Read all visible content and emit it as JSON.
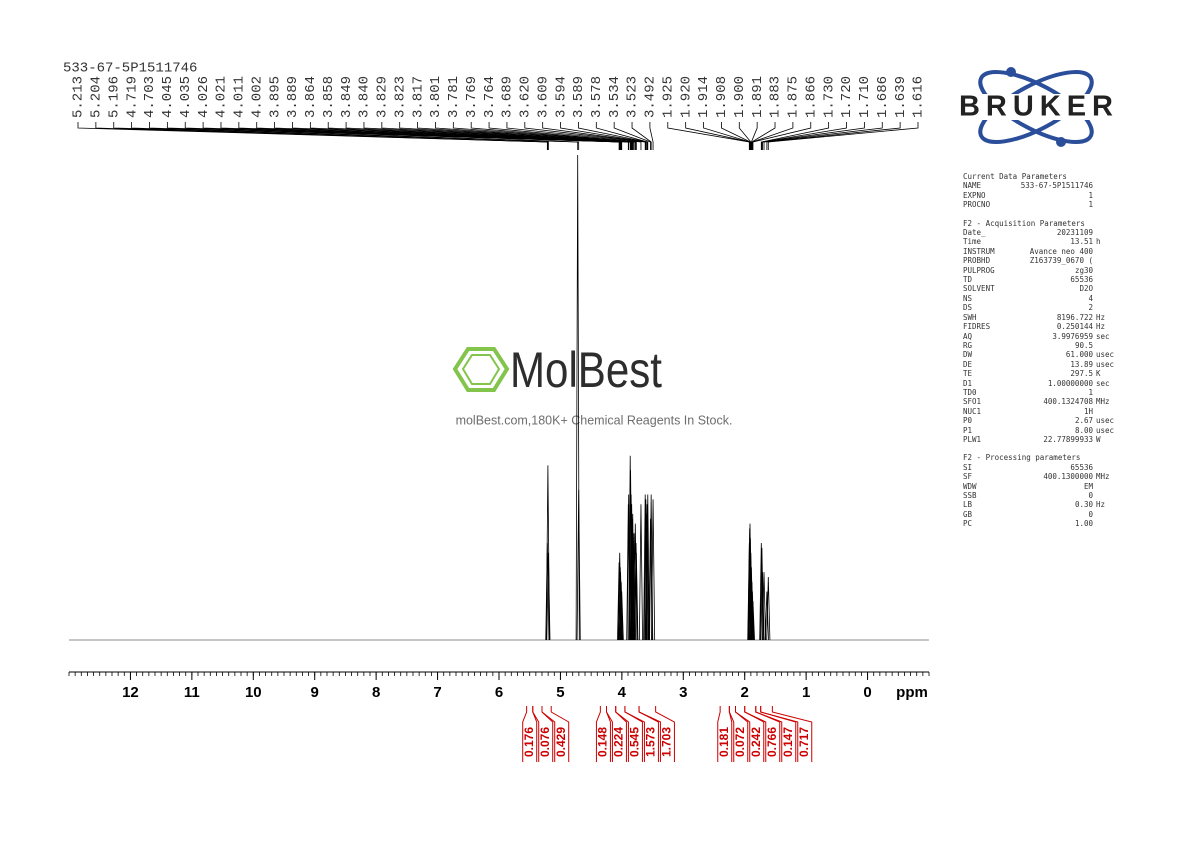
{
  "chart_data": {
    "type": "nmr",
    "title": "533-67-5P1511746",
    "xlabel": "ppm",
    "xlim": [
      13,
      -1
    ],
    "xticks": [
      12,
      11,
      10,
      9,
      8,
      7,
      6,
      5,
      4,
      3,
      2,
      1,
      0
    ],
    "ylim": [
      0,
      100
    ],
    "color": "#000000",
    "integral_color": "#cc0000",
    "peaks": {
      "ppm": [
        5.213,
        5.204,
        5.196,
        4.719,
        4.703,
        4.045,
        4.035,
        4.026,
        4.021,
        4.011,
        4.002,
        3.895,
        3.889,
        3.864,
        3.858,
        3.849,
        {
          "value": 3.84,
          "label": "3.840"
        },
        3.829,
        3.823,
        3.817,
        3.801,
        3.781,
        3.769,
        3.764,
        3.689,
        {
          "value": 3.62,
          "label": "3.620"
        },
        3.609,
        3.594,
        3.589,
        3.578,
        3.534,
        3.523,
        3.492,
        1.925,
        {
          "value": 1.92,
          "label": "1.920"
        },
        1.914,
        1.908,
        {
          "value": 1.9,
          "label": "1.900"
        },
        1.891,
        1.883,
        1.875,
        1.866,
        {
          "value": 1.73,
          "label": "1.730"
        },
        {
          "value": 1.72,
          "label": "1.720"
        },
        {
          "value": 1.71,
          "label": "1.710"
        },
        1.686,
        1.639,
        1.616
      ],
      "intensity": [
        20,
        36,
        18,
        100,
        31,
        16,
        18,
        15,
        14,
        12,
        10,
        28,
        30,
        38,
        35,
        30,
        28,
        25,
        26,
        22,
        22,
        24,
        20,
        18,
        28,
        30,
        29,
        26,
        28,
        30,
        25,
        30,
        29,
        20,
        23,
        24,
        21,
        18,
        15,
        12,
        10,
        8,
        20,
        19,
        14,
        14,
        10,
        13
      ]
    },
    "integrals": [
      {
        "value": 0.176,
        "range": [
          5.55,
          5.45
        ]
      },
      {
        "value": 0.076,
        "range": [
          5.45,
          5.3
        ]
      },
      {
        "value": 0.429,
        "range": [
          5.3,
          5.15
        ]
      },
      {
        "value": 0.148,
        "range": [
          4.35,
          4.25
        ]
      },
      {
        "value": 0.224,
        "range": [
          4.25,
          4.1
        ]
      },
      {
        "value": 0.545,
        "range": [
          4.1,
          3.95
        ]
      },
      {
        "value": 1.573,
        "range": [
          3.95,
          3.72
        ]
      },
      {
        "value": 1.703,
        "range": [
          3.72,
          3.45
        ]
      },
      {
        "value": 0.181,
        "range": [
          2.4,
          2.25
        ]
      },
      {
        "value": 0.072,
        "range": [
          2.25,
          2.15
        ]
      },
      {
        "value": 0.242,
        "range": [
          2.15,
          2.0
        ]
      },
      {
        "value": 0.766,
        "range": [
          2.0,
          1.82
        ]
      },
      {
        "value": 0.147,
        "range": [
          1.82,
          1.74
        ]
      },
      {
        "value": 0.717,
        "range": [
          1.74,
          1.55
        ]
      }
    ]
  },
  "logo": "BRUKER",
  "watermark": {
    "brand": "MolBest",
    "tagline": "molBest.com,180K+ Chemical Reagents In Stock."
  },
  "parameters": [
    {
      "title": "Current Data Parameters",
      "rows": [
        [
          "NAME",
          "533-67-5P1511746",
          ""
        ],
        [
          "EXPNO",
          "1",
          ""
        ],
        [
          "PROCNO",
          "1",
          ""
        ]
      ]
    },
    {
      "title": "F2 - Acquisition Parameters",
      "rows": [
        [
          "Date_",
          "20231109",
          ""
        ],
        [
          "Time",
          "13.51",
          "h"
        ],
        [
          "INSTRUM",
          "Avance neo 400",
          ""
        ],
        [
          "PROBHD",
          "Z163739_0670 (",
          ""
        ],
        [
          "PULPROG",
          "zg30",
          ""
        ],
        [
          "TD",
          "65536",
          ""
        ],
        [
          "SOLVENT",
          "D2O",
          ""
        ],
        [
          "NS",
          "4",
          ""
        ],
        [
          "DS",
          "2",
          ""
        ],
        [
          "SWH",
          "8196.722",
          "Hz"
        ],
        [
          "FIDRES",
          "0.250144",
          "Hz"
        ],
        [
          "AQ",
          "3.9976959",
          "sec"
        ],
        [
          "RG",
          "90.5",
          ""
        ],
        [
          "DW",
          "61.000",
          "usec"
        ],
        [
          "DE",
          "13.89",
          "usec"
        ],
        [
          "TE",
          "297.5",
          "K"
        ],
        [
          "D1",
          "1.00000000",
          "sec"
        ],
        [
          "TD0",
          "1",
          ""
        ],
        [
          "SFO1",
          "400.1324708",
          "MHz"
        ],
        [
          "NUC1",
          "1H",
          ""
        ],
        [
          "P0",
          "2.67",
          "usec"
        ],
        [
          "P1",
          "8.00",
          "usec"
        ],
        [
          "PLW1",
          "22.77899933",
          "W"
        ]
      ]
    },
    {
      "title": "F2 - Processing parameters",
      "rows": [
        [
          "SI",
          "65536",
          ""
        ],
        [
          "SF",
          "400.1300000",
          "MHz"
        ],
        [
          "WDW",
          "EM",
          ""
        ],
        [
          "SSB",
          "0",
          ""
        ],
        [
          "LB",
          "0.30",
          "Hz"
        ],
        [
          "GB",
          "0",
          ""
        ],
        [
          "PC",
          "1.00",
          ""
        ]
      ]
    }
  ]
}
